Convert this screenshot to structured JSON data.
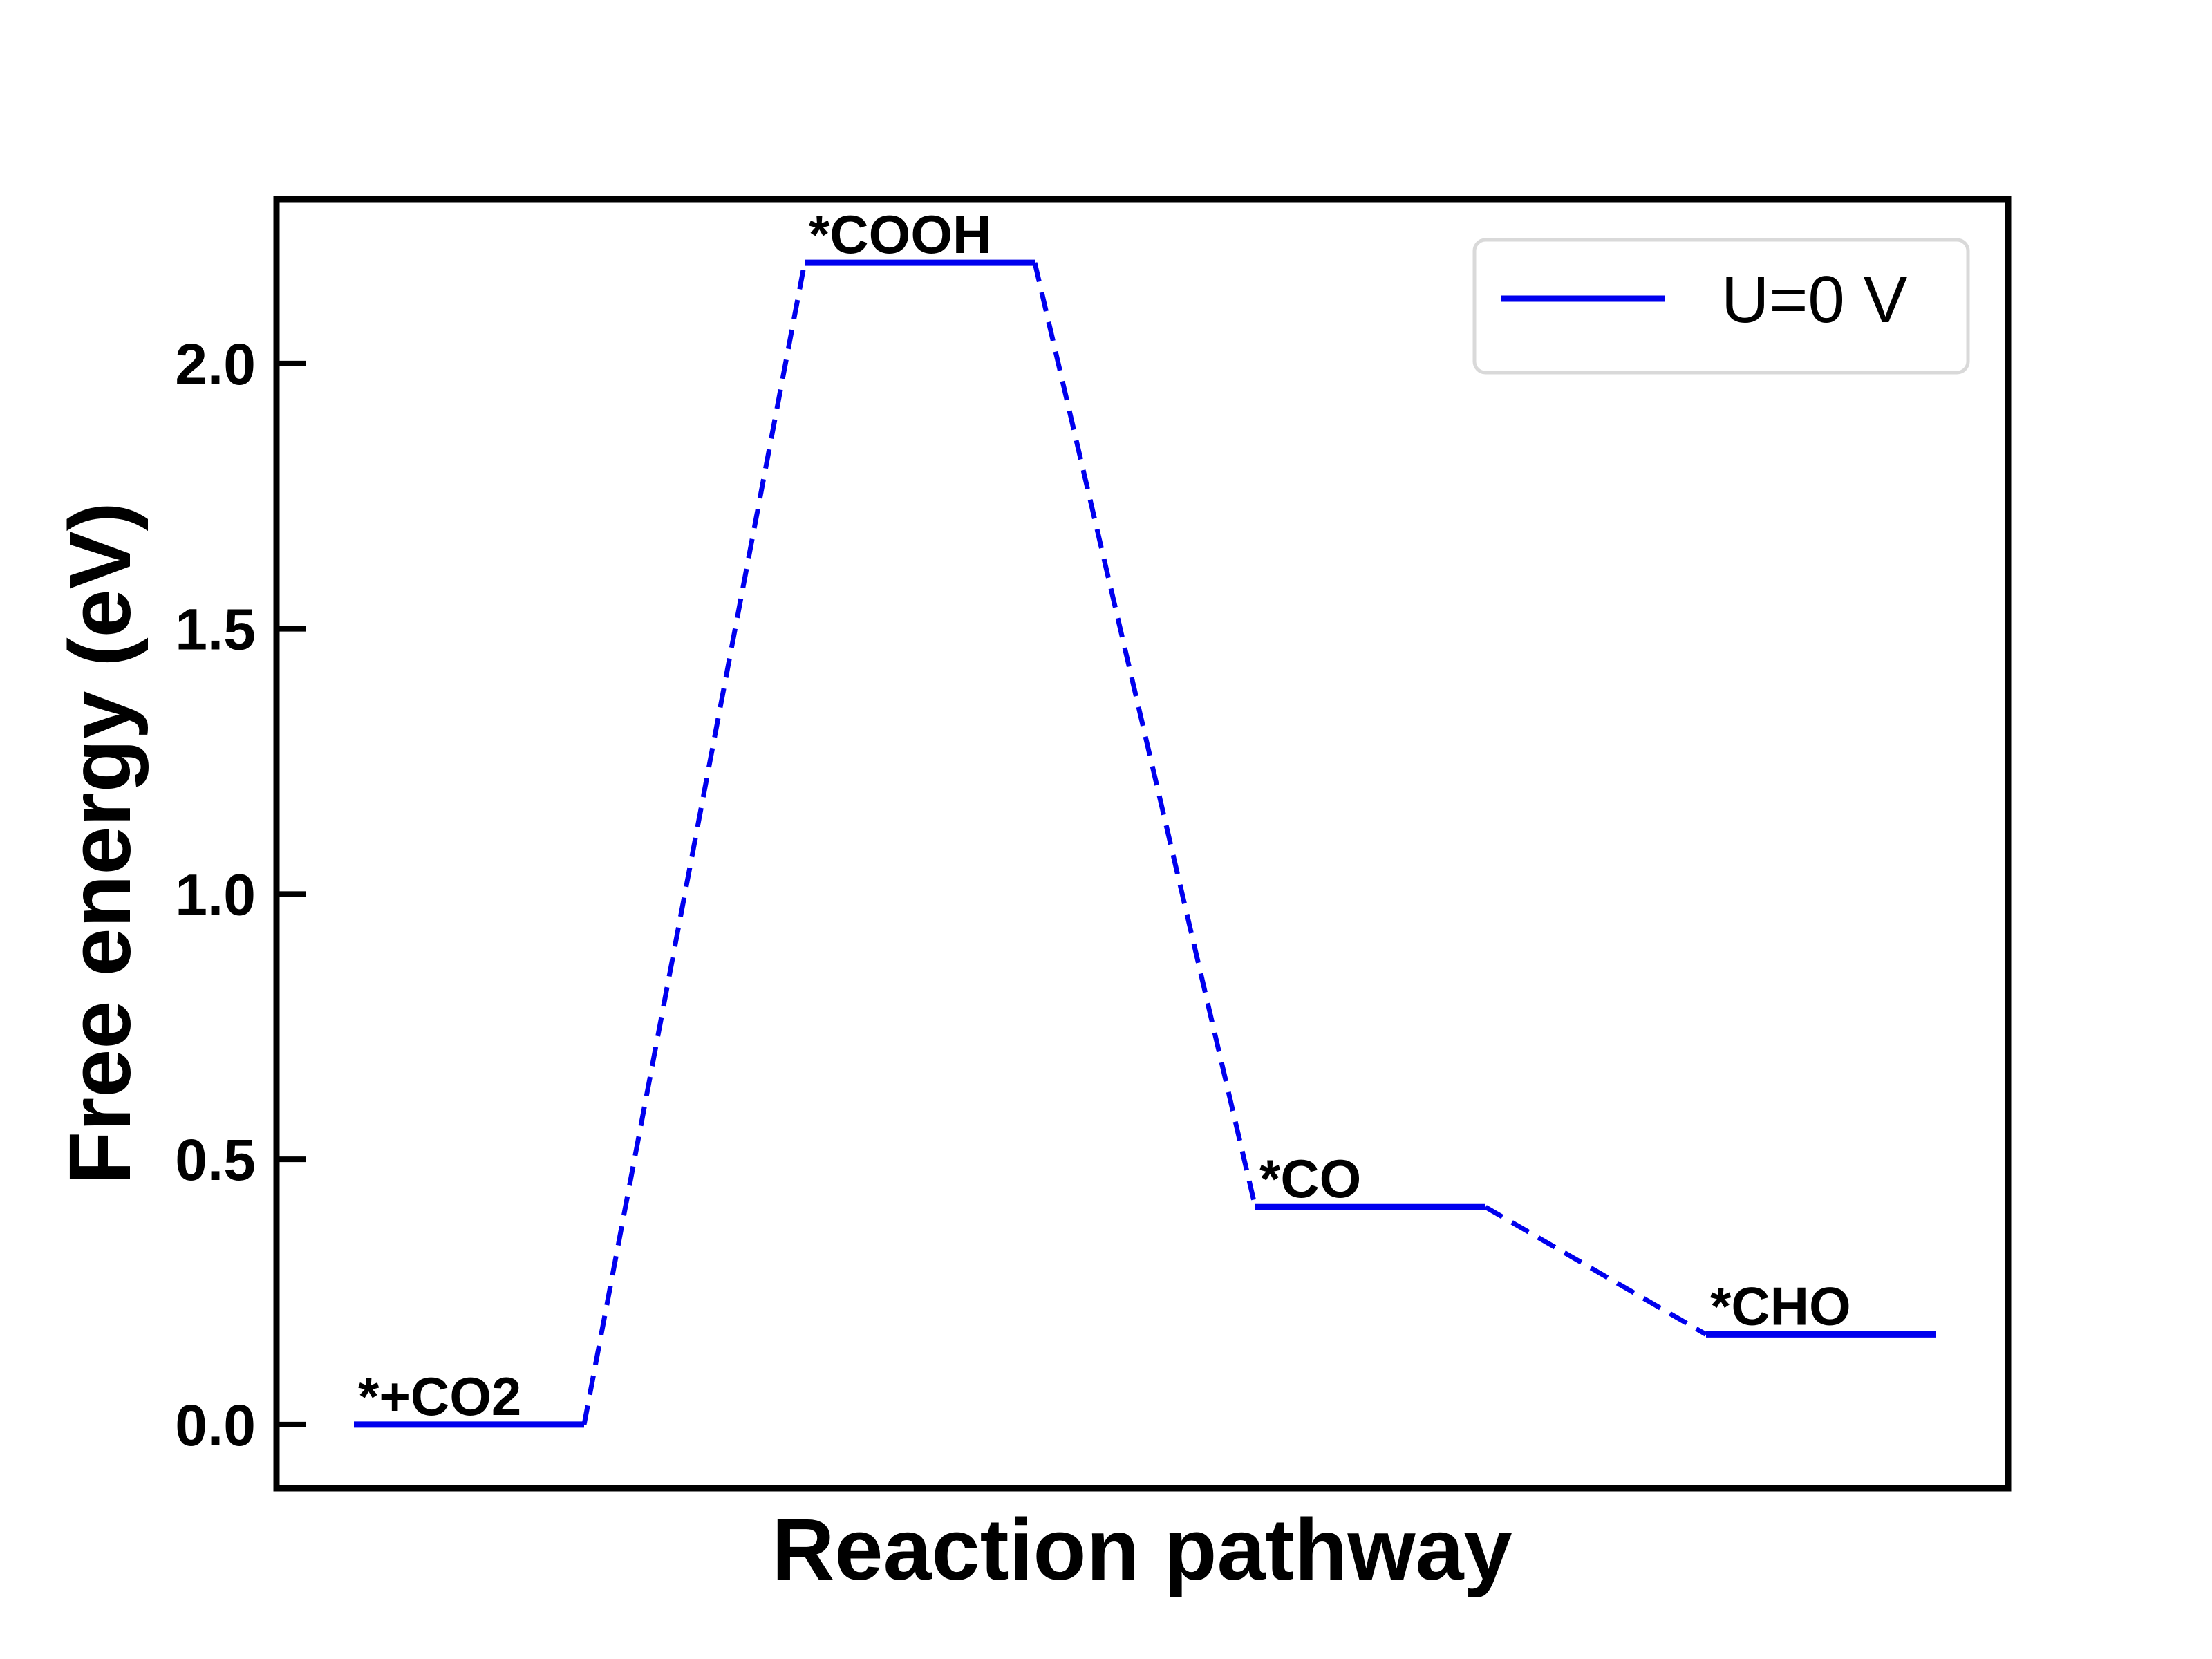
{
  "chart_data": {
    "type": "line",
    "xlabel": "Reaction pathway",
    "ylabel": "Free energy (eV)",
    "ylim": [
      -0.12,
      2.31
    ],
    "yticks": [
      "0.0",
      "0.5",
      "1.0",
      "1.5",
      "2.0"
    ],
    "ytick_values": [
      0.0,
      0.5,
      1.0,
      1.5,
      2.0
    ],
    "legend": {
      "position": "top-right",
      "entries": [
        "U=0 V"
      ]
    },
    "series": [
      {
        "name": "U=0 V",
        "color": "#0000ee",
        "states": [
          {
            "label": "*+CO2",
            "value": 0.0
          },
          {
            "label": "*COOH",
            "value": 2.19
          },
          {
            "label": "*CO",
            "value": 0.41
          },
          {
            "label": "*CHO",
            "value": 0.17
          }
        ]
      }
    ]
  }
}
